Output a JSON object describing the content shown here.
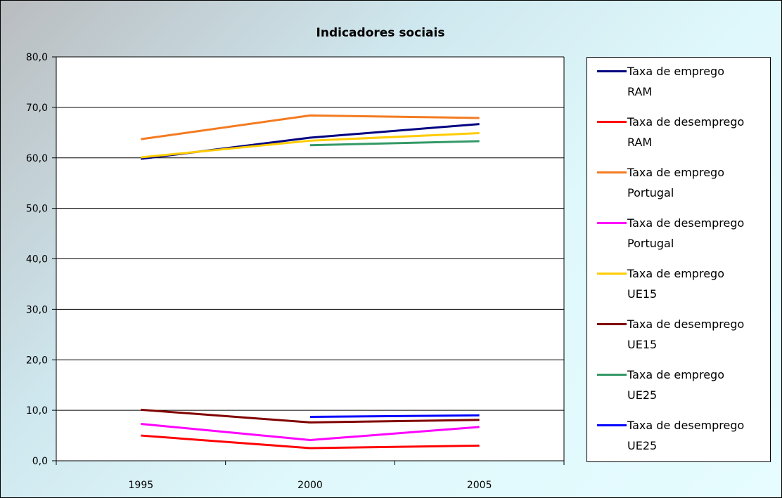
{
  "chart_data": {
    "type": "line",
    "title": "Indicadores sociais",
    "categories": [
      "1995",
      "2000",
      "2005"
    ],
    "ylim": [
      0,
      80
    ],
    "yticks": [
      "0,0",
      "10,0",
      "20,0",
      "30,0",
      "40,0",
      "50,0",
      "60,0",
      "70,0",
      "80,0"
    ],
    "grid": true,
    "legend_position": "right",
    "series": [
      {
        "name": "Taxa de emprego RAM",
        "name_lines": [
          "Taxa de emprego",
          "RAM"
        ],
        "color": "#000080",
        "values": [
          59.8,
          64.0,
          66.7
        ]
      },
      {
        "name": "Taxa de desemprego RAM",
        "name_lines": [
          "Taxa de desemprego",
          "RAM"
        ],
        "color": "#ff0000",
        "values": [
          5.0,
          2.5,
          3.0
        ]
      },
      {
        "name": "Taxa de emprego Portugal",
        "name_lines": [
          "Taxa de emprego",
          "Portugal"
        ],
        "color": "#f47a20",
        "values": [
          63.7,
          68.4,
          67.9
        ]
      },
      {
        "name": "Taxa de desemprego Portugal",
        "name_lines": [
          "Taxa de desemprego",
          "Portugal"
        ],
        "color": "#ff00ff",
        "values": [
          7.3,
          4.1,
          6.7
        ]
      },
      {
        "name": "Taxa de emprego UE15",
        "name_lines": [
          "Taxa de emprego",
          "UE15"
        ],
        "color": "#ffcc00",
        "values": [
          60.1,
          63.4,
          64.9
        ]
      },
      {
        "name": "Taxa de desemprego UE15",
        "name_lines": [
          "Taxa de desemprego",
          "UE15"
        ],
        "color": "#800000",
        "values": [
          10.1,
          7.6,
          8.1
        ]
      },
      {
        "name": "Taxa de emprego UE25",
        "name_lines": [
          "Taxa de emprego",
          "UE25"
        ],
        "color": "#339966",
        "values": [
          null,
          62.5,
          63.3
        ]
      },
      {
        "name": "Taxa de desemprego UE25",
        "name_lines": [
          "Taxa de desemprego",
          "UE25"
        ],
        "color": "#0000ff",
        "values": [
          null,
          8.7,
          9.0
        ]
      }
    ]
  }
}
